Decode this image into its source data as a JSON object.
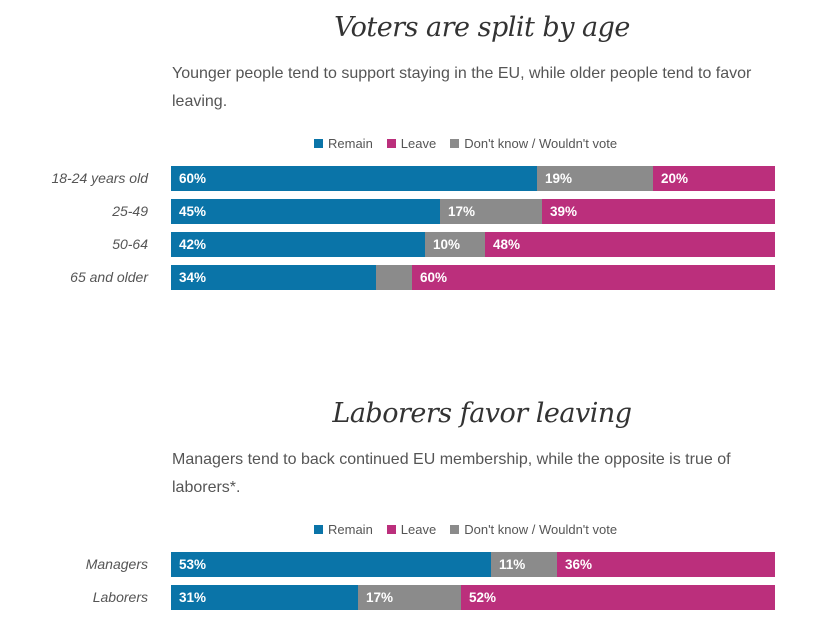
{
  "colors": {
    "remain": "#0a74a8",
    "leave": "#bb2f7c",
    "unsure": "#8b8b8b"
  },
  "chart_data": [
    {
      "type": "bar",
      "orientation": "horizontal",
      "stacked": true,
      "title": "Voters are split by age",
      "subtitle": "Younger people tend to support staying in the EU, while older people tend to favor leaving.",
      "legend": [
        "Remain",
        "Leave",
        "Don't know / Wouldn't vote"
      ],
      "categories": [
        "18-24 years old",
        "25-49",
        "50-64",
        "65 and older"
      ],
      "series": [
        {
          "name": "Remain",
          "key": "remain",
          "values": [
            60,
            45,
            42,
            34
          ]
        },
        {
          "name": "Don't know / Wouldn't vote",
          "key": "unsure",
          "values": [
            19,
            17,
            10,
            6
          ]
        },
        {
          "name": "Leave",
          "key": "leave",
          "values": [
            20,
            39,
            48,
            60
          ]
        }
      ],
      "segment_labels": [
        [
          "60%",
          "19%",
          "20%"
        ],
        [
          "45%",
          "17%",
          "39%"
        ],
        [
          "42%",
          "10%",
          "48%"
        ],
        [
          "34%",
          "",
          "60%"
        ]
      ]
    },
    {
      "type": "bar",
      "orientation": "horizontal",
      "stacked": true,
      "title": "Laborers favor leaving",
      "subtitle": "Managers tend to back continued EU membership, while the opposite is true of laborers*.",
      "legend": [
        "Remain",
        "Leave",
        "Don't know / Wouldn't vote"
      ],
      "categories": [
        "Managers",
        "Laborers"
      ],
      "series": [
        {
          "name": "Remain",
          "key": "remain",
          "values": [
            53,
            31
          ]
        },
        {
          "name": "Don't know / Wouldn't vote",
          "key": "unsure",
          "values": [
            11,
            17
          ]
        },
        {
          "name": "Leave",
          "key": "leave",
          "values": [
            36,
            52
          ]
        }
      ],
      "segment_labels": [
        [
          "53%",
          "11%",
          "36%"
        ],
        [
          "31%",
          "17%",
          "52%"
        ]
      ]
    }
  ]
}
